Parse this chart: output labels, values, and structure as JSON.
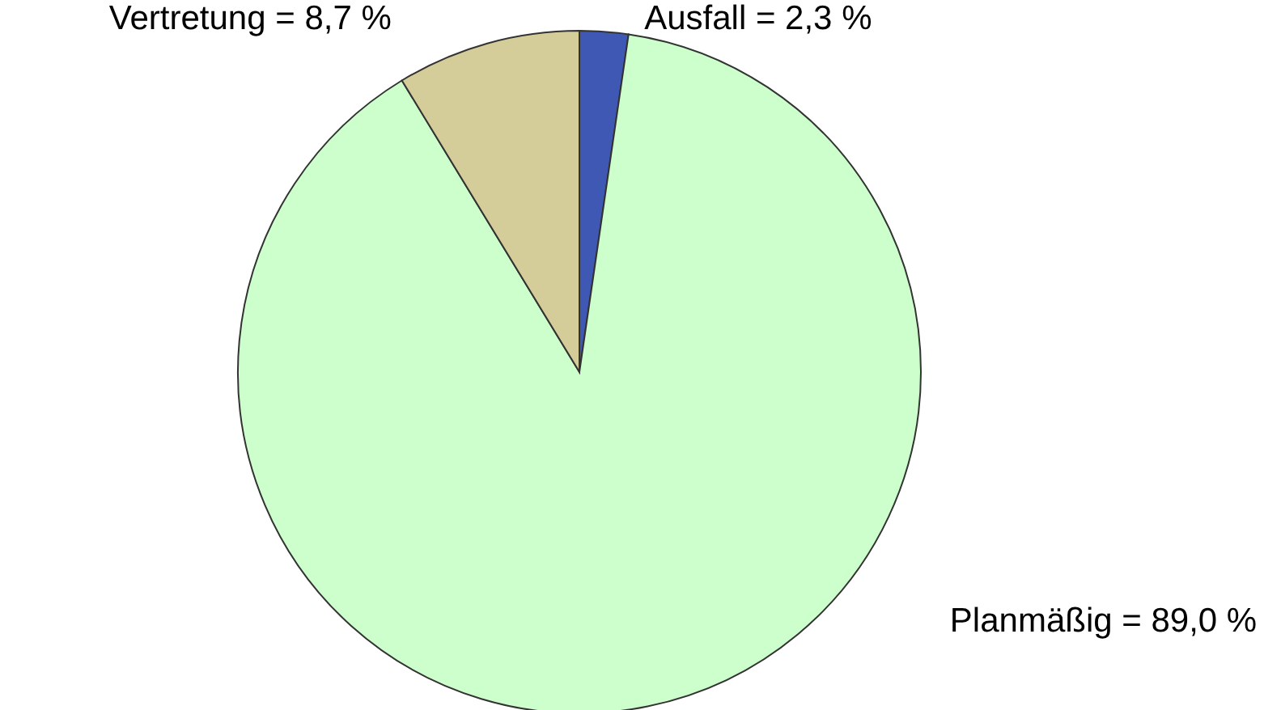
{
  "chart_data": {
    "type": "pie",
    "categories": [
      "Ausfall",
      "Planmäßig",
      "Vertretung"
    ],
    "values": [
      2.3,
      89.0,
      8.7
    ],
    "colors": [
      "#3f58b4",
      "#ccffcc",
      "#d4cc99"
    ],
    "value_labels": [
      "= 2,3 %",
      "= 89,0 %",
      "= 8,7 %"
    ]
  }
}
